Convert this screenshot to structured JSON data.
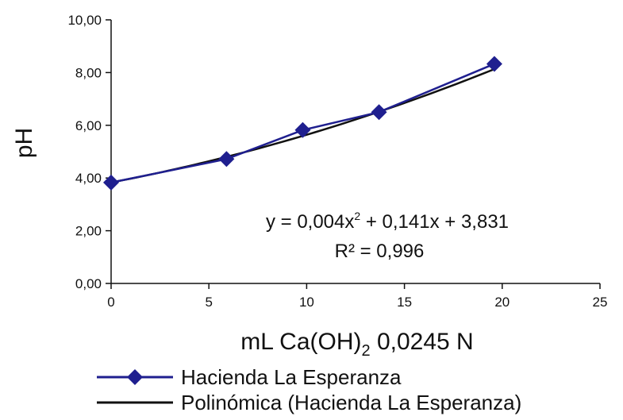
{
  "chart_data": {
    "type": "scatter",
    "title": "",
    "xlabel": "mL Ca(OH)",
    "xlabel_subscript": "2",
    "xlabel_suffix": " 0,0245 N",
    "ylabel": "pH",
    "xlim": [
      0,
      25
    ],
    "ylim": [
      0,
      10
    ],
    "x_ticks": [
      0,
      5,
      10,
      15,
      20,
      25
    ],
    "x_tick_labels": [
      "0",
      "5",
      "10",
      "15",
      "20",
      "25"
    ],
    "y_ticks": [
      0,
      2,
      4,
      6,
      8,
      10
    ],
    "y_tick_labels": [
      "0,00",
      "2,00",
      "4,00",
      "6,00",
      "8,00",
      "10,00"
    ],
    "grid": false,
    "legend_position": "bottom",
    "series": [
      {
        "name": "Hacienda La Esperanza",
        "color": "#1f1f8f",
        "marker": "diamond",
        "x": [
          0,
          5.9,
          9.8,
          13.7,
          19.6
        ],
        "y": [
          3.83,
          4.72,
          5.82,
          6.5,
          8.33
        ]
      }
    ],
    "trendline": {
      "name": "Polinómica (Hacienda La Esperanza)",
      "color": "#111111",
      "type": "polynomial",
      "coefficients": [
        0.004,
        0.141,
        3.831
      ],
      "x_range": [
        0,
        19.6
      ],
      "equation_prefix": "y = 0,004x",
      "equation_exponent": "2",
      "equation_suffix": " + 0,141x + 3,831",
      "r_squared_label": "R² = 0,996"
    }
  }
}
